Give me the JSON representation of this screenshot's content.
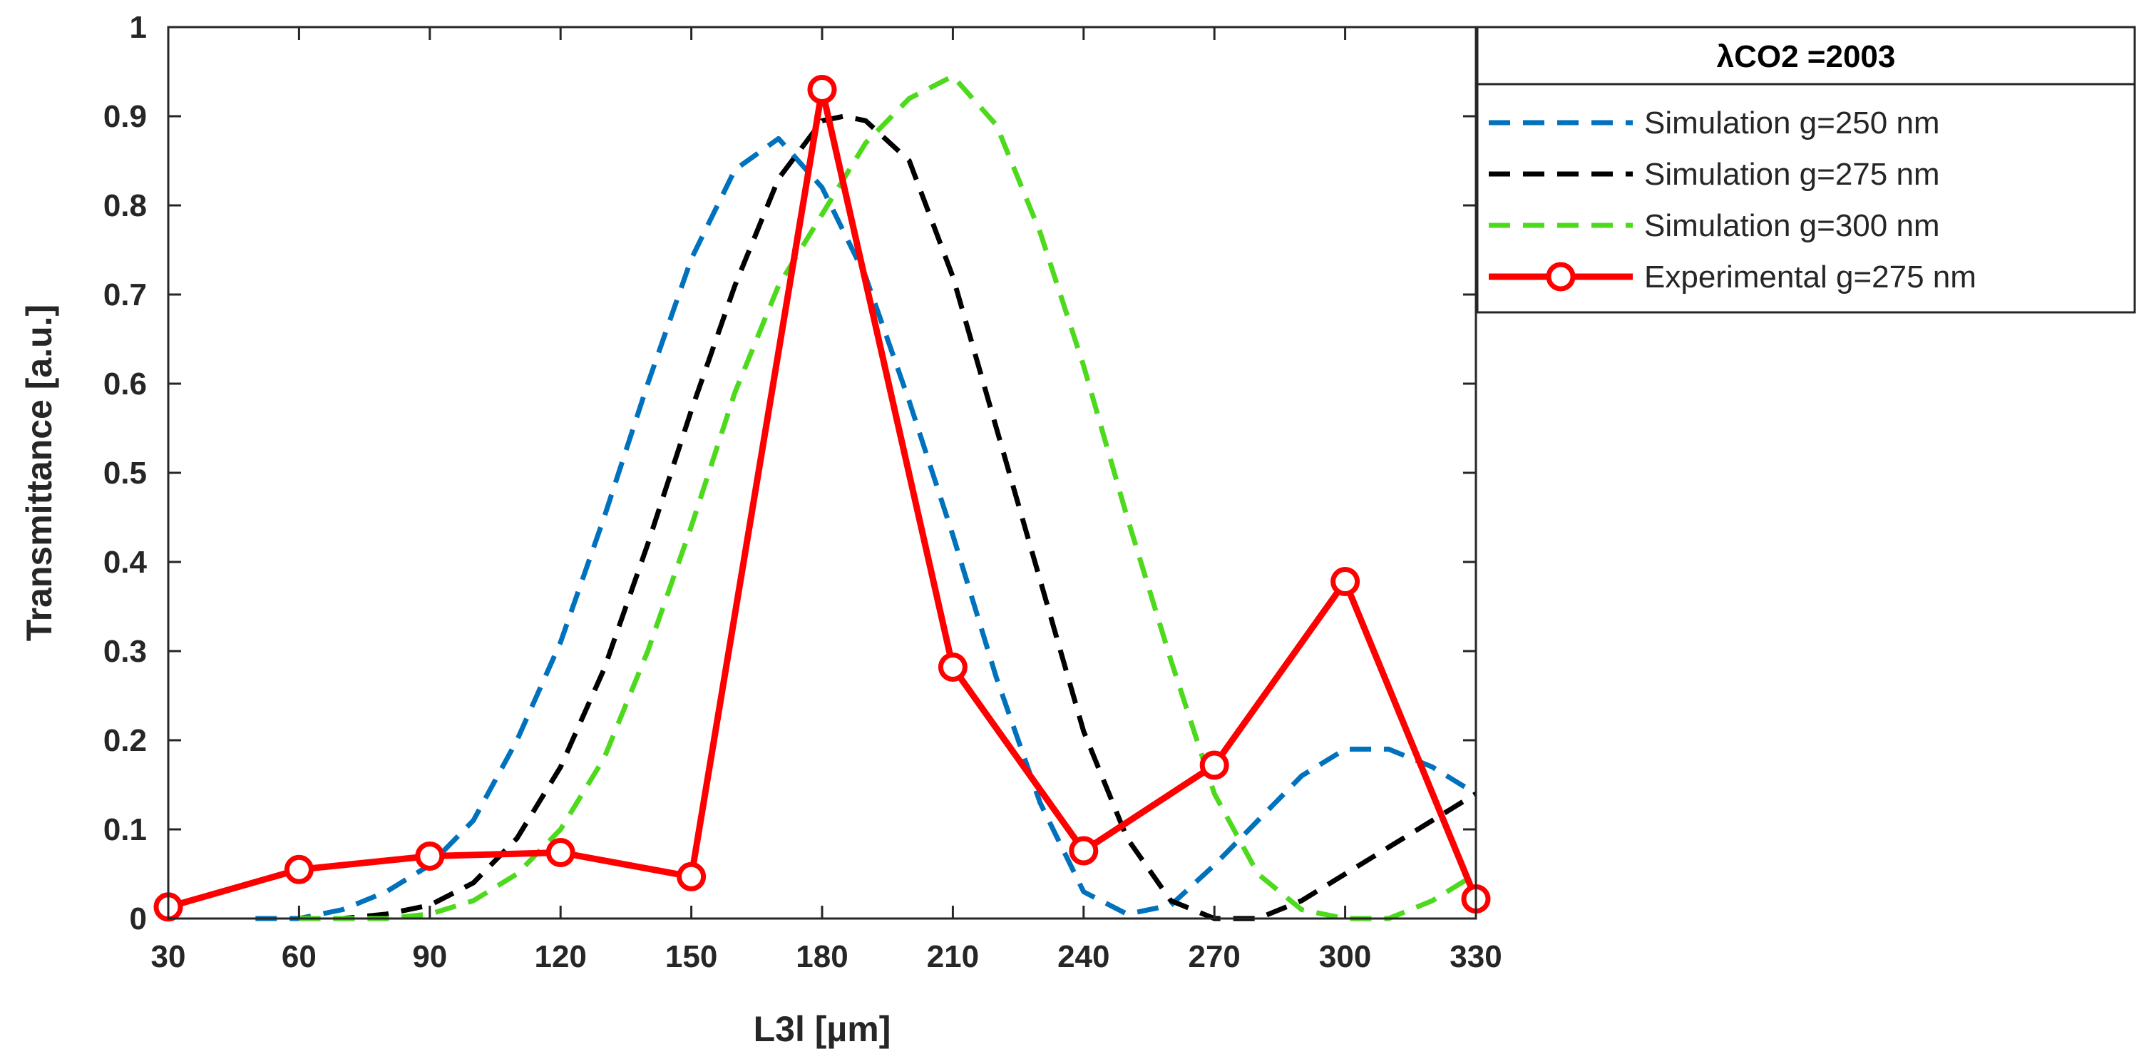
{
  "chart_data": {
    "type": "line",
    "title": "",
    "xlabel": "L3l [µm]",
    "ylabel": "Transmittance [a.u.]",
    "xlim": [
      30,
      330
    ],
    "ylim": [
      0,
      1
    ],
    "xticks": [
      30,
      60,
      90,
      120,
      150,
      180,
      210,
      240,
      270,
      300,
      330
    ],
    "yticks": [
      0,
      0.1,
      0.2,
      0.3,
      0.4,
      0.5,
      0.6,
      0.7,
      0.8,
      0.9,
      1
    ],
    "ytick_labels": [
      "0",
      "0.1",
      "0.2",
      "0.3",
      "0.4",
      "0.5",
      "0.6",
      "0.7",
      "0.8",
      "0.9",
      "1"
    ],
    "grid": false,
    "legend": {
      "title": "λCO2 =2003",
      "placement": "outside-top-right"
    },
    "series": [
      {
        "name": "Simulation g=250 nm",
        "style": "dashed",
        "color": "#0072BD",
        "x": [
          50,
          60,
          70,
          80,
          90,
          100,
          110,
          120,
          130,
          140,
          150,
          160,
          170,
          180,
          190,
          200,
          210,
          220,
          230,
          240,
          250,
          260,
          270,
          280,
          290,
          300,
          310,
          320,
          330
        ],
        "y": [
          0.0,
          0.0,
          0.01,
          0.03,
          0.06,
          0.11,
          0.2,
          0.31,
          0.45,
          0.6,
          0.74,
          0.84,
          0.875,
          0.82,
          0.72,
          0.58,
          0.43,
          0.27,
          0.13,
          0.03,
          0.005,
          0.015,
          0.06,
          0.11,
          0.16,
          0.19,
          0.19,
          0.17,
          0.14
        ]
      },
      {
        "name": "Simulation g=275 nm",
        "style": "dashed",
        "color": "#000000",
        "x": [
          60,
          70,
          80,
          90,
          100,
          110,
          120,
          130,
          140,
          150,
          160,
          170,
          180,
          185,
          190,
          200,
          210,
          220,
          230,
          240,
          250,
          260,
          270,
          280,
          290,
          300,
          310,
          320,
          330
        ],
        "y": [
          0.0,
          0.0,
          0.005,
          0.015,
          0.04,
          0.09,
          0.17,
          0.28,
          0.42,
          0.57,
          0.71,
          0.83,
          0.895,
          0.9,
          0.895,
          0.85,
          0.72,
          0.55,
          0.38,
          0.21,
          0.09,
          0.02,
          0.0,
          0.0,
          0.02,
          0.05,
          0.08,
          0.11,
          0.14
        ]
      },
      {
        "name": "Simulation g=300 nm",
        "style": "dashed",
        "color": "#4DD91C",
        "x": [
          60,
          70,
          80,
          90,
          100,
          110,
          120,
          130,
          140,
          150,
          160,
          170,
          180,
          190,
          200,
          210,
          220,
          230,
          240,
          250,
          260,
          270,
          280,
          290,
          300,
          310,
          320,
          330
        ],
        "y": [
          0.0,
          0.0,
          0.0,
          0.005,
          0.02,
          0.05,
          0.1,
          0.18,
          0.3,
          0.44,
          0.59,
          0.71,
          0.79,
          0.87,
          0.92,
          0.945,
          0.89,
          0.77,
          0.62,
          0.45,
          0.29,
          0.14,
          0.05,
          0.01,
          0.0,
          0.0,
          0.02,
          0.05
        ]
      },
      {
        "name": "Experimental g=275 nm",
        "style": "solid",
        "marker": "circle",
        "color": "#FF0000",
        "x": [
          30,
          60,
          90,
          120,
          150,
          180,
          210,
          240,
          270,
          300,
          330
        ],
        "y": [
          0.013,
          0.055,
          0.07,
          0.074,
          0.047,
          0.93,
          0.282,
          0.076,
          0.172,
          0.378,
          0.022
        ]
      }
    ]
  }
}
